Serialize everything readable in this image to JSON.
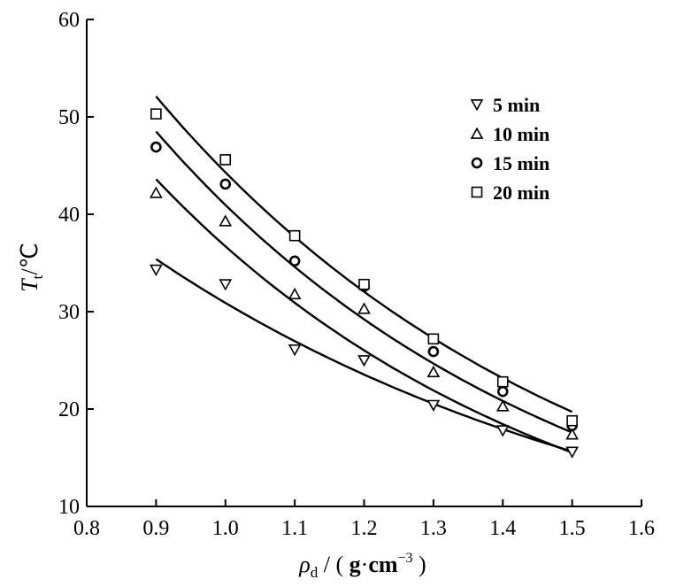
{
  "chart_data": {
    "type": "scatter",
    "x": [
      0.9,
      1.0,
      1.1,
      1.2,
      1.3,
      1.4,
      1.5
    ],
    "xlim": [
      0.8,
      1.6
    ],
    "ylim": [
      10,
      60
    ],
    "x_ticks": [
      0.8,
      0.9,
      1.0,
      1.1,
      1.2,
      1.3,
      1.4,
      1.5,
      1.6
    ],
    "x_tick_labels": [
      "0.8",
      "0.9",
      "1.0",
      "1.1",
      "1.2",
      "1.3",
      "1.4",
      "1.5",
      "1.6"
    ],
    "y_ticks": [
      10,
      20,
      30,
      40,
      50,
      60
    ],
    "y_tick_labels": [
      "10",
      "20",
      "30",
      "40",
      "50",
      "60"
    ],
    "xlabel": {
      "symbol": "ρ",
      "sub": "d",
      "unit_prefix": " / ( ",
      "unit_g": "g",
      "unit_dot": "·",
      "unit_cm": "cm",
      "unit_exp": "−3",
      "unit_suffix": " )"
    },
    "ylabel": {
      "symbol": "T",
      "sub": "t",
      "unit": "/℃"
    },
    "legend_position": "top-right",
    "grid": false,
    "series": [
      {
        "name": "5 min",
        "marker": "triangle-down",
        "values": [
          34.3,
          32.8,
          26.1,
          25.0,
          20.4,
          17.8,
          15.6
        ],
        "fit": {
          "a": 35.4,
          "b": 1.36
        }
      },
      {
        "name": "10 min",
        "marker": "triangle-up",
        "values": [
          42.2,
          39.3,
          31.8,
          30.3,
          23.8,
          20.3,
          17.4
        ],
        "fit": {
          "a": 43.6,
          "b": 1.72
        }
      },
      {
        "name": "15 min",
        "marker": "circle",
        "values": [
          46.9,
          43.1,
          35.2,
          32.6,
          25.9,
          21.8,
          18.3
        ],
        "fit": {
          "a": 48.5,
          "b": 1.69
        }
      },
      {
        "name": "20 min",
        "marker": "square",
        "values": [
          50.3,
          45.6,
          37.8,
          32.8,
          27.2,
          22.8,
          18.8
        ],
        "fit": {
          "a": 52.1,
          "b": 1.62
        }
      }
    ]
  }
}
